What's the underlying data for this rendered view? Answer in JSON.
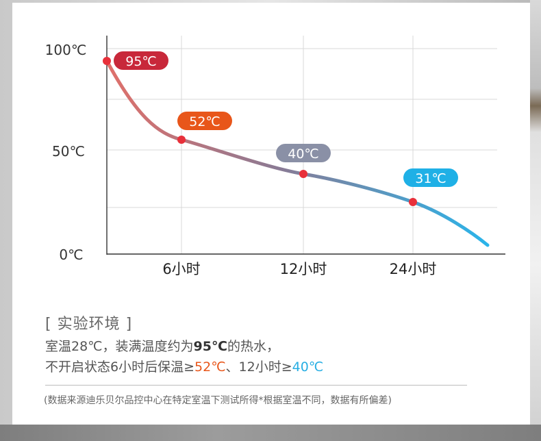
{
  "chart_data": {
    "type": "line",
    "x_labels": [
      "6小时",
      "12小时",
      "24小时"
    ],
    "y_ticks": [
      "100℃",
      "50℃",
      "0℃"
    ],
    "ylim": [
      0,
      100
    ],
    "grid": true,
    "points": [
      {
        "x": "0小时",
        "y": 95,
        "label": "95℃",
        "color": "#c8283a"
      },
      {
        "x": "6小时",
        "y": 52,
        "label": "52℃",
        "color": "#e8561a"
      },
      {
        "x": "12小时",
        "y": 40,
        "label": "40℃",
        "color": "#8a90a6"
      },
      {
        "x": "24小时",
        "y": 31,
        "label": "31℃",
        "color": "#1fb0e6"
      }
    ],
    "line_colors": [
      "#e0706a",
      "#8a7a94",
      "#2ab4ea"
    ],
    "point_color": "#e8303a"
  },
  "environment": {
    "title": "[ 实验环境 ]",
    "line1": {
      "prefix": "室温28℃，装满温度约为",
      "bold": "95℃",
      "suffix": "的热水，"
    },
    "line2": {
      "prefix": "不开启状态6小时后保温≥",
      "hot_value": "52℃",
      "middle": "、12小时≥",
      "warm_value": "40℃"
    }
  },
  "footnote": "(数据来源迪乐贝尔品控中心在特定室温下测试所得*根据室温不同，数据有所偏差)"
}
